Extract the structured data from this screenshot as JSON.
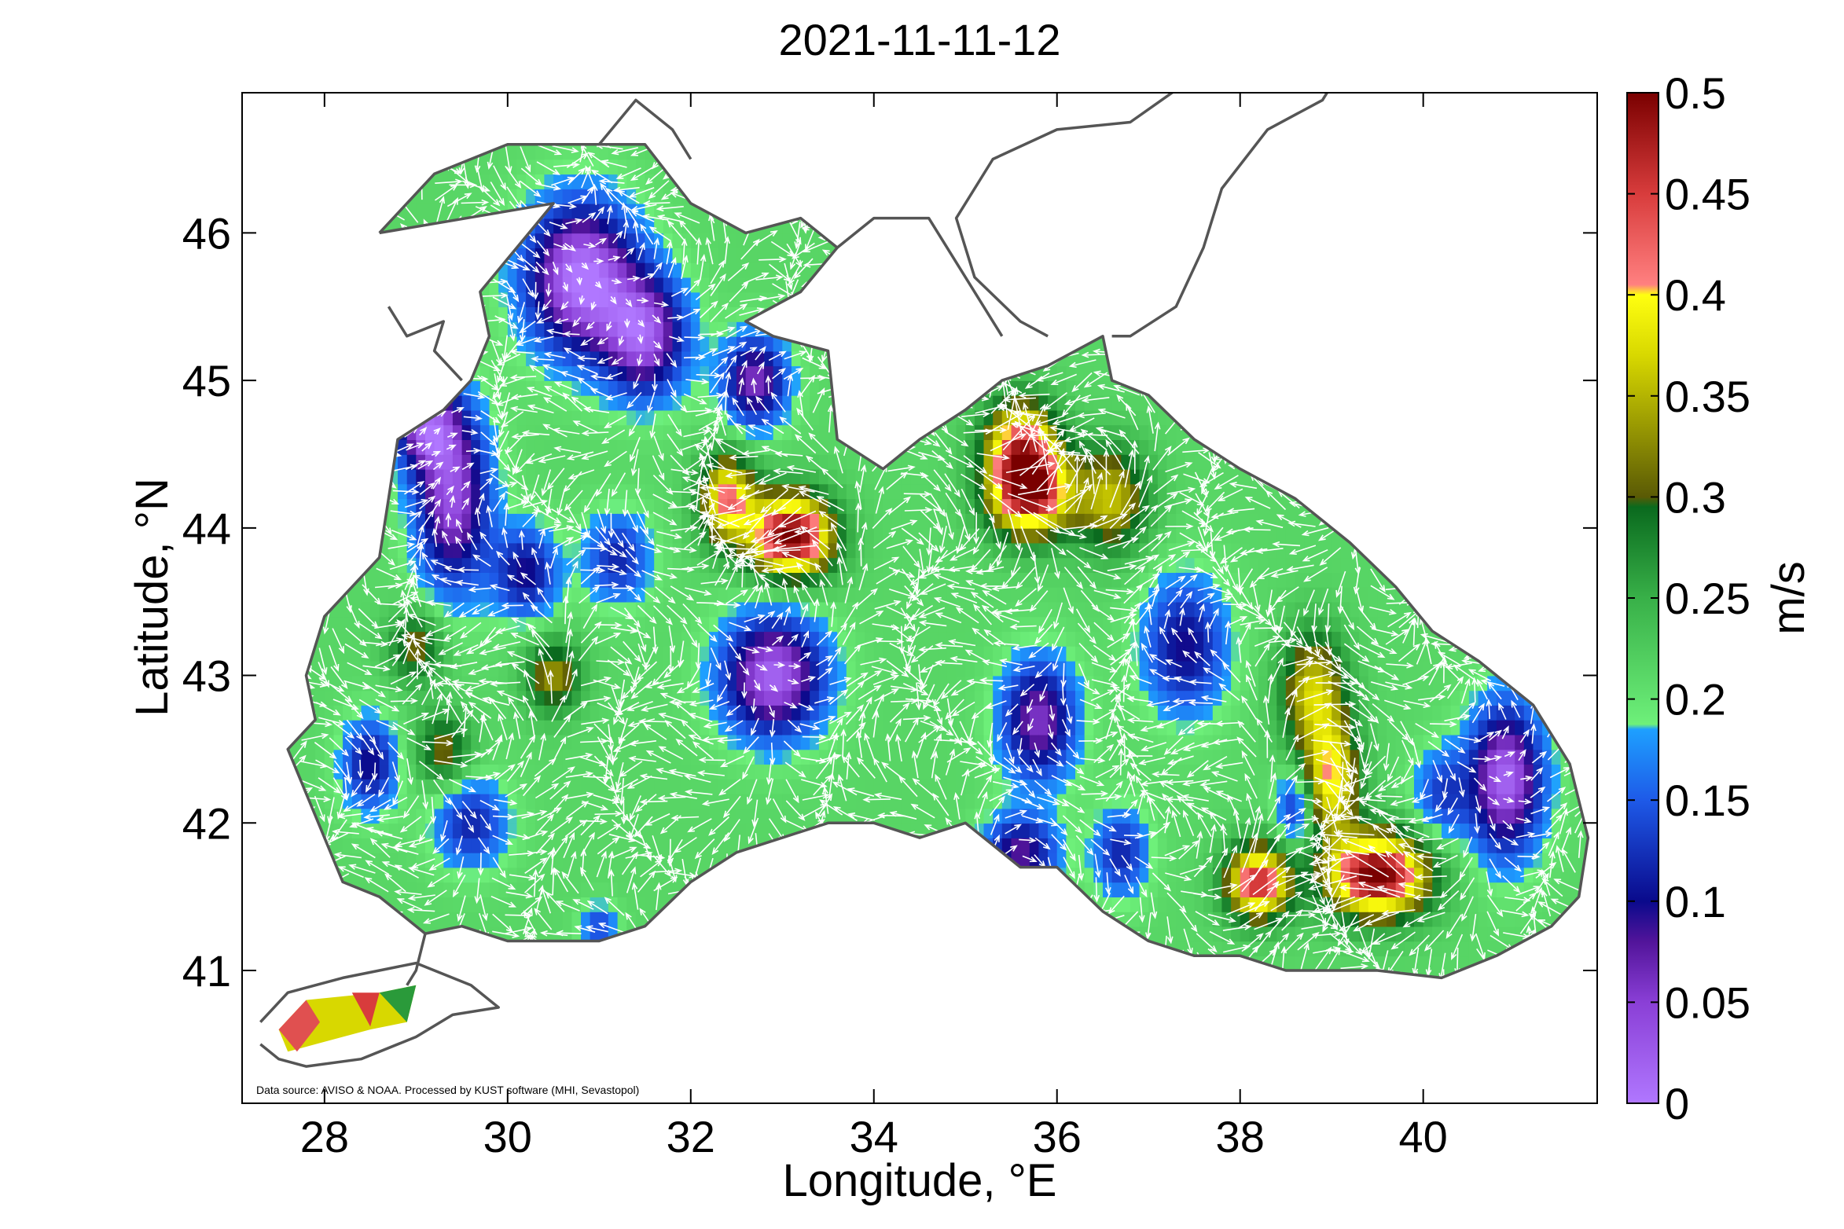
{
  "title": "2021-11-11-12",
  "x_axis": {
    "label": "Longitude, °E",
    "range": [
      27.1,
      41.9
    ],
    "ticks": [
      28,
      30,
      32,
      34,
      36,
      38,
      40
    ],
    "tick_labels": [
      "28",
      "30",
      "32",
      "34",
      "36",
      "38",
      "40"
    ]
  },
  "y_axis": {
    "label": "Latitude, °N",
    "range": [
      40.1,
      46.95
    ],
    "ticks": [
      41,
      42,
      43,
      44,
      45,
      46
    ],
    "tick_labels": [
      "41",
      "42",
      "43",
      "44",
      "45",
      "46"
    ]
  },
  "colorbar": {
    "label": "m/s",
    "range": [
      0,
      0.5
    ],
    "ticks": [
      0,
      0.05,
      0.1,
      0.15,
      0.2,
      0.25,
      0.3,
      0.35,
      0.4,
      0.45,
      0.5
    ],
    "tick_labels": [
      "0",
      "0.05",
      "0.1",
      "0.15",
      "0.2",
      "0.25",
      "0.3",
      "0.35",
      "0.4",
      "0.45",
      "0.5"
    ],
    "colors": {
      "0.00": "#a86cf5",
      "0.05": "#8a3fd6",
      "0.08": "#52149a",
      "0.10": "#0a0a8c",
      "0.15": "#1e5ae8",
      "0.18": "#1ea0ff",
      "0.20": "#66e87a",
      "0.25": "#38b048",
      "0.29": "#0a6a1e",
      "0.33": "#7a7a08",
      "0.37": "#d8d800",
      "0.40": "#ffff10",
      "0.41": "#f06a6a",
      "0.45": "#d83c3c",
      "0.50": "#7a0000"
    }
  },
  "source_note": "Data source: AVISO & NOAA. Processed by KUST software (MHI, Sevastopol)",
  "colors": {
    "coast": "#555555",
    "arrows": "#ffffff",
    "land": "#ffffff"
  }
}
